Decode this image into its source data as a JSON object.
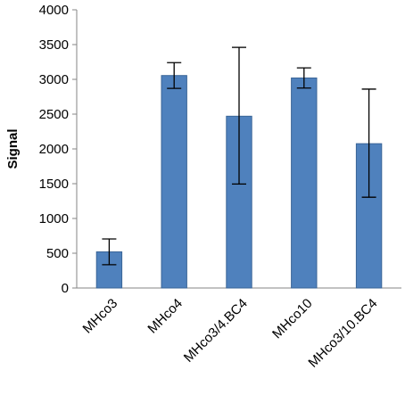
{
  "chart_data": {
    "type": "bar",
    "categories": [
      "MHco3",
      "MHco4",
      "MHco3/4.BC4",
      "MHco10",
      "MHco3/10.BC4"
    ],
    "values": [
      520,
      3055,
      2470,
      3020,
      2075
    ],
    "error_bars": [
      {
        "low": 335,
        "high": 705
      },
      {
        "low": 2870,
        "high": 3240
      },
      {
        "low": 1495,
        "high": 3460
      },
      {
        "low": 2875,
        "high": 3165
      },
      {
        "low": 1305,
        "high": 2860
      }
    ],
    "ylabel": "Signal",
    "xlabel": "",
    "title": "",
    "ylim": [
      0,
      4000
    ],
    "yticks": [
      0,
      500,
      1000,
      1500,
      2000,
      2500,
      3000,
      3500,
      4000
    ],
    "grid": false,
    "bar_color": "#4F81BD",
    "bar_edge_color": "#3A6597"
  }
}
